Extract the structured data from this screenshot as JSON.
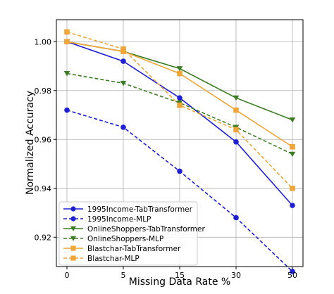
{
  "chart_data": {
    "type": "line",
    "xlabel": "Missing Data Rate %",
    "ylabel": "Normalized Accuracy",
    "categories": [
      "0",
      "5",
      "15",
      "30",
      "50"
    ],
    "ylim": [
      0.908,
      1.009
    ],
    "yticks": [
      0.92,
      0.94,
      0.96,
      0.98,
      1.0
    ],
    "ytick_labels": [
      "0.92",
      "0.94",
      "0.96",
      "0.98",
      "1.00"
    ],
    "grid": true,
    "legend_position": "bottom-left",
    "series": [
      {
        "name": "1995Income-TabTransformer",
        "values": [
          1.0,
          0.992,
          0.977,
          0.959,
          0.933
        ],
        "color": "#1f1fd6",
        "dash": false,
        "marker": "circle"
      },
      {
        "name": "1995Income-MLP",
        "values": [
          0.972,
          0.965,
          0.947,
          0.928,
          0.906
        ],
        "color": "#1f1fd6",
        "dash": true,
        "marker": "circle"
      },
      {
        "name": "OnlineShoppers-TabTransformer",
        "values": [
          1.0,
          0.996,
          0.989,
          0.977,
          0.968
        ],
        "color": "#3a7d22",
        "dash": false,
        "marker": "triangle-down"
      },
      {
        "name": "OnlineShoppers-MLP",
        "values": [
          0.987,
          0.983,
          0.975,
          0.965,
          0.954
        ],
        "color": "#3a7d22",
        "dash": true,
        "marker": "triangle-down"
      },
      {
        "name": "Blastchar-TabTransformer",
        "values": [
          1.0,
          0.996,
          0.987,
          0.972,
          0.957
        ],
        "color": "#f0a536",
        "dash": false,
        "marker": "square"
      },
      {
        "name": "Blastchar-MLP",
        "values": [
          1.004,
          0.997,
          0.974,
          0.964,
          0.94
        ],
        "color": "#f0a536",
        "dash": true,
        "marker": "square"
      }
    ]
  }
}
